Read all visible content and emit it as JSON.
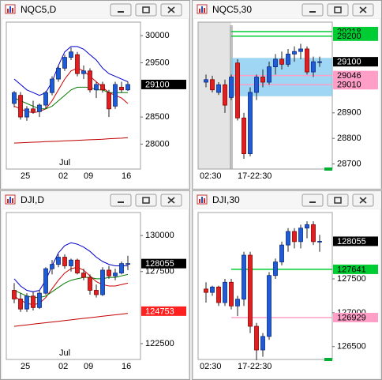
{
  "chart_data": [
    {
      "type": "candlestick",
      "title": "NQC5,D",
      "categories": [
        null,
        null,
        "25",
        null,
        null,
        null,
        null,
        null,
        "02",
        null,
        null,
        null,
        "09",
        null,
        null,
        null,
        null,
        null,
        "16"
      ],
      "month_label": "Jul",
      "open": [
        28750,
        28900,
        28500,
        28650,
        28600,
        28720,
        28950,
        29200,
        29400,
        29600,
        29650,
        29300,
        29350,
        29000,
        29100,
        28950,
        28700,
        29050,
        29000
      ],
      "high": [
        28980,
        28960,
        28700,
        28800,
        28750,
        28980,
        29250,
        29450,
        29650,
        29780,
        29700,
        29450,
        29400,
        29150,
        29150,
        29000,
        29150,
        29150,
        29150
      ],
      "low": [
        28680,
        28450,
        28430,
        28560,
        28500,
        28650,
        28900,
        29150,
        29350,
        29550,
        29250,
        29200,
        28950,
        28850,
        28950,
        28500,
        28650,
        28950,
        28980
      ],
      "close": [
        28950,
        28500,
        28650,
        28600,
        28720,
        28950,
        29200,
        29400,
        29600,
        29700,
        29300,
        29350,
        29000,
        29100,
        29000,
        28650,
        29100,
        29000,
        29100
      ],
      "series": [
        {
          "color": "#0000cc",
          "values": [
            29200,
            29100,
            29000,
            28950,
            28900,
            28950,
            29150,
            29450,
            29700,
            29800,
            29800,
            29750,
            29650,
            29550,
            29400,
            29300,
            29250,
            29200,
            29150
          ]
        },
        {
          "color": "#d00000",
          "values": [
            28700,
            28650,
            28600,
            28580,
            28600,
            28650,
            28800,
            29000,
            29200,
            29350,
            29400,
            29350,
            29250,
            29150,
            29050,
            28950,
            28900,
            28850,
            28750
          ]
        },
        {
          "color": "#007a00",
          "values": [
            28850,
            28800,
            28750,
            28700,
            28650,
            28650,
            28700,
            28800,
            28900,
            29000,
            29050,
            29050,
            29050,
            29000,
            29000,
            28950,
            28950,
            28950,
            28950
          ]
        },
        {
          "color": "#c00000",
          "values": [
            28020,
            28025,
            28030,
            28035,
            28040,
            28045,
            28050,
            28055,
            28060,
            28065,
            28070,
            28075,
            28080,
            28085,
            28090,
            28100,
            28105,
            28110,
            28120
          ]
        }
      ],
      "ylim": [
        27540,
        30250
      ],
      "yticks": [
        28000,
        28500,
        29500,
        30000
      ],
      "price_labels": [
        29100
      ],
      "price_label_colors": [
        "#000000"
      ]
    },
    {
      "type": "candlestick",
      "title": "NQC5,30",
      "categories": [
        "02:30",
        null,
        null,
        null,
        null,
        null,
        "17-22:30",
        null,
        null,
        null,
        null,
        null,
        null,
        null,
        null,
        null,
        null,
        null,
        null
      ],
      "open": [
        29020,
        29030,
        28980,
        29010,
        28960,
        29095,
        28880,
        28740,
        28980,
        29040,
        29020,
        29080,
        29110,
        29090,
        29130,
        29140,
        29150,
        29060,
        29100
      ],
      "high": [
        29050,
        29045,
        29020,
        29030,
        29050,
        29110,
        28900,
        29000,
        29050,
        29070,
        29100,
        29130,
        29140,
        29150,
        29160,
        29170,
        29160,
        29120,
        29120
      ],
      "low": [
        29000,
        28980,
        28970,
        28900,
        28950,
        28870,
        28720,
        28730,
        28950,
        29000,
        29010,
        29050,
        29070,
        29080,
        29100,
        29110,
        29050,
        29040,
        29080
      ],
      "close": [
        29030,
        28990,
        29010,
        28930,
        29040,
        28880,
        28740,
        28980,
        29040,
        29020,
        29080,
        29110,
        29090,
        29130,
        29140,
        29150,
        29060,
        29100,
        29100
      ],
      "zone": [
        28965,
        29115
      ],
      "zone_color": "#7ec8f0",
      "levels": [
        29218,
        29200,
        29046,
        29010
      ],
      "level_colors": [
        "#00cc33",
        "#00cc33",
        "#ff9fc8",
        "#ff9fc8"
      ],
      "ylim": [
        28680,
        29255
      ],
      "yticks": [
        28700,
        28800,
        28900
      ],
      "price_labels": [
        29100
      ],
      "price_label_colors": [
        "#000000"
      ]
    },
    {
      "type": "candlestick",
      "title": "DJI,D",
      "categories": [
        null,
        null,
        "25",
        null,
        null,
        null,
        null,
        null,
        "02",
        null,
        null,
        null,
        "09",
        null,
        null,
        null,
        null,
        null,
        "16"
      ],
      "month_label": "Jul",
      "open": [
        126200,
        125600,
        124900,
        125800,
        125000,
        126000,
        127700,
        128000,
        128500,
        127900,
        128300,
        127400,
        127100,
        126200,
        125900,
        127600,
        127200,
        127400,
        128055
      ],
      "high": [
        126700,
        126000,
        126000,
        126100,
        126200,
        127800,
        128300,
        128700,
        128700,
        128400,
        128400,
        127700,
        127300,
        126600,
        127800,
        127900,
        127700,
        128200,
        128600
      ],
      "low": [
        125300,
        124700,
        124700,
        124800,
        124900,
        125900,
        127300,
        127800,
        127700,
        127500,
        127300,
        126900,
        125900,
        125700,
        125800,
        127000,
        126900,
        127300,
        127600
      ],
      "close": [
        125600,
        124900,
        125800,
        125000,
        126000,
        127700,
        128000,
        128500,
        127900,
        128300,
        127400,
        127100,
        126200,
        125900,
        127600,
        127200,
        127400,
        128055,
        128055
      ],
      "series": [
        {
          "color": "#0000cc",
          "values": [
            127000,
            126500,
            126200,
            126100,
            126200,
            126900,
            127900,
            128800,
            129300,
            129500,
            129400,
            129200,
            128900,
            128500,
            128200,
            128000,
            127900,
            127900,
            127900
          ]
        },
        {
          "color": "#d00000",
          "values": [
            125800,
            125500,
            125300,
            125200,
            125300,
            125700,
            126300,
            126900,
            127400,
            127700,
            127800,
            127600,
            127200,
            126800,
            126600,
            126500,
            126500,
            126600,
            126700
          ]
        },
        {
          "color": "#007a00",
          "values": [
            126200,
            126000,
            125800,
            125700,
            125700,
            125800,
            126100,
            126400,
            126700,
            126900,
            127000,
            127100,
            127100,
            127000,
            127000,
            127100,
            127100,
            127200,
            127300
          ]
        },
        {
          "color": "#c00000",
          "values": [
            123700,
            123750,
            123800,
            123850,
            123900,
            123950,
            124000,
            124050,
            124100,
            124150,
            124200,
            124250,
            124300,
            124350,
            124400,
            124450,
            124500,
            124550,
            124600
          ]
        }
      ],
      "ylim": [
        121400,
        131600
      ],
      "yticks": [
        122500,
        127500,
        130000
      ],
      "price_labels": [
        128055,
        124753
      ],
      "price_label_colors": [
        "#000000",
        "#ff2020"
      ]
    },
    {
      "type": "candlestick",
      "title": "DJI,30",
      "categories": [
        "02:30",
        null,
        null,
        null,
        null,
        null,
        "17-22:30",
        null,
        null,
        null,
        null,
        null,
        null,
        null,
        null,
        null,
        null,
        null,
        null
      ],
      "open": [
        127350,
        127300,
        127380,
        127150,
        127450,
        127100,
        127200,
        127850,
        126800,
        126450,
        126650,
        127550,
        127750,
        128000,
        128200,
        128050,
        128250,
        128300,
        128050
      ],
      "high": [
        127450,
        127400,
        127400,
        127500,
        127500,
        127250,
        127900,
        127900,
        126850,
        126700,
        127600,
        127800,
        128050,
        128250,
        128250,
        128300,
        128350,
        128350,
        128150
      ],
      "low": [
        127150,
        127250,
        127100,
        127100,
        127050,
        126950,
        127100,
        126700,
        126300,
        126350,
        126600,
        127500,
        127700,
        127900,
        127950,
        127950,
        128100,
        128000,
        127900
      ],
      "close": [
        127300,
        127380,
        127150,
        127450,
        127100,
        127200,
        127850,
        126800,
        126450,
        126650,
        127550,
        127750,
        128000,
        128200,
        128050,
        128250,
        128300,
        128050,
        128055
      ],
      "levels": [
        127641,
        126929
      ],
      "level_colors": [
        "#00cc33",
        "#ff9fc8"
      ],
      "ylim": [
        126310,
        128480
      ],
      "yticks": [
        126500,
        127000,
        127500
      ],
      "price_labels": [
        128055
      ],
      "price_label_colors": [
        "#000000"
      ]
    }
  ]
}
